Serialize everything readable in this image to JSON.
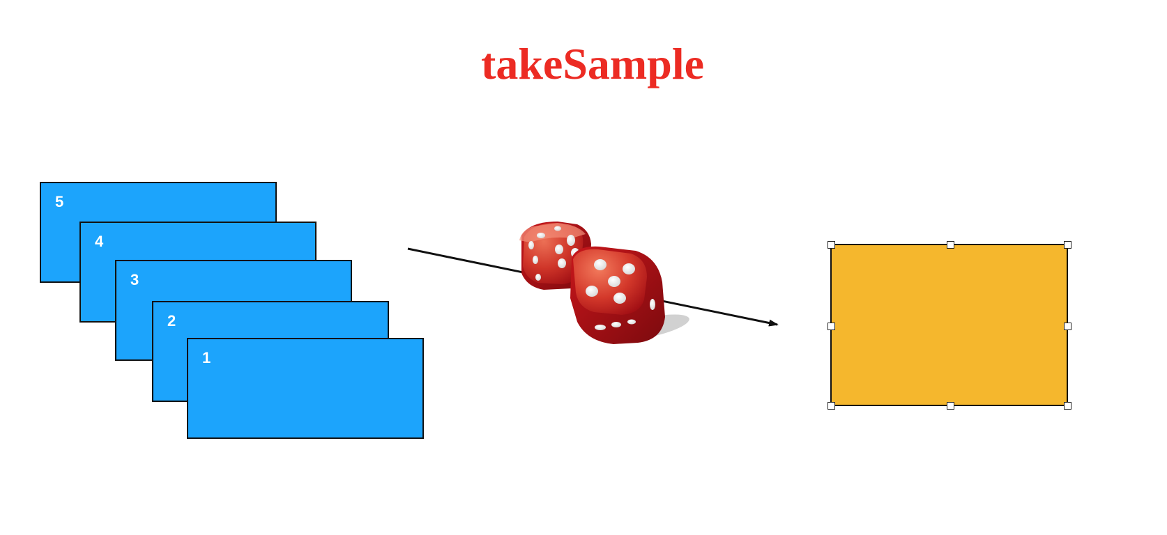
{
  "title": "takeSample",
  "partitions": [
    {
      "label": "5"
    },
    {
      "label": "4"
    },
    {
      "label": "3"
    },
    {
      "label": "2"
    },
    {
      "label": "1"
    }
  ],
  "icons": {
    "dice": "dice-icon",
    "arrow": "arrow-right-icon"
  },
  "colors": {
    "title": "#ec2b23",
    "partition_fill": "#1ca4fc",
    "result_fill": "#f5b72d",
    "dice": "#c8161b"
  }
}
